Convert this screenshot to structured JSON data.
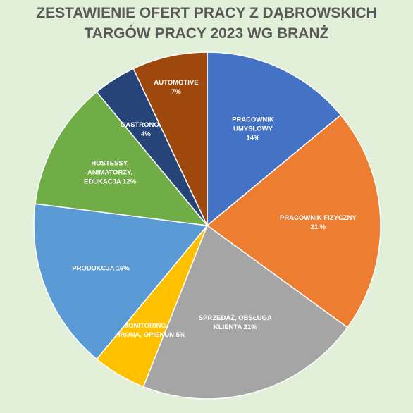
{
  "chart_data": {
    "type": "pie",
    "title_lines": [
      "ZESTAWIENIE OFERT PRACY Z DĄBROWSKICH",
      "TARGÓW PRACY 2023 WG BRANŻ"
    ],
    "start_angle_deg": 0,
    "direction": "clockwise",
    "slices": [
      {
        "label_lines": [
          "PRACOWNIK",
          "UMYSŁOWY",
          "14%"
        ],
        "value": 14,
        "color": "#4472c4"
      },
      {
        "label_lines": [
          "PRACOWNIK FIZYCZNY",
          "21 %"
        ],
        "value": 21,
        "color": "#ed7d31"
      },
      {
        "label_lines": [
          "SPRZEDAŻ, OBSŁUGA",
          "KLIENTA 21%"
        ],
        "value": 21,
        "color": "#a5a5a5"
      },
      {
        "label_lines": [
          "MONITORING,",
          "OCHRONA, OPIEKUN 5%"
        ],
        "value": 5,
        "color": "#ffc000"
      },
      {
        "label_lines": [
          "PRODUKCJA 16%"
        ],
        "value": 16,
        "color": "#5b9bd5"
      },
      {
        "label_lines": [
          "HOSTESSY,",
          "ANIMATORZY,",
          "EDUKACJA 12%"
        ],
        "value": 12,
        "color": "#70ad47"
      },
      {
        "label_lines": [
          "GASTRONOMIA",
          "4%"
        ],
        "value": 4,
        "color": "#264478"
      },
      {
        "label_lines": [
          "AUTOMOTIVE",
          "7%"
        ],
        "value": 7,
        "color": "#9e480e"
      }
    ]
  }
}
